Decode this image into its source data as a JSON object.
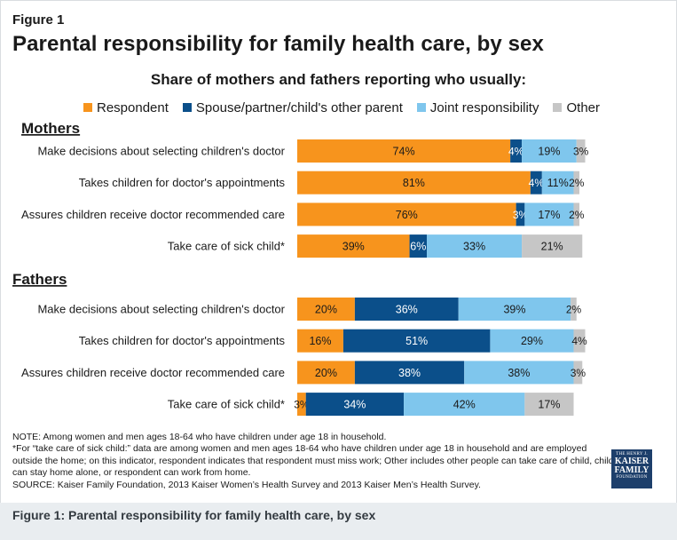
{
  "figure_label": "Figure 1",
  "title": "Parental responsibility for family health care, by sex",
  "subtitle": "Share of mothers and fathers reporting who usually:",
  "colors": {
    "respondent": "#f7941d",
    "spouse": "#0b4f8a",
    "joint": "#7fc6ed",
    "other": "#c6c6c6"
  },
  "legend": [
    {
      "key": "respondent",
      "label": "Respondent"
    },
    {
      "key": "spouse",
      "label": "Spouse/partner/child's other parent"
    },
    {
      "key": "joint",
      "label": "Joint responsibility"
    },
    {
      "key": "other",
      "label": "Other"
    }
  ],
  "chart_data": {
    "type": "bar",
    "orientation": "horizontal",
    "stacked": true,
    "value_unit": "%",
    "xlim": [
      0,
      100
    ],
    "grid": false,
    "legend_position": "top",
    "series_keys": [
      "respondent",
      "spouse",
      "joint",
      "other"
    ],
    "series_names": [
      "Respondent",
      "Spouse/partner/child's other parent",
      "Joint responsibility",
      "Other"
    ],
    "groups": [
      {
        "name": "Mothers",
        "rows": [
          {
            "label": "Make decisions about selecting children's doctor",
            "values": [
              74,
              4,
              19,
              3
            ]
          },
          {
            "label": "Takes children for doctor's appointments",
            "values": [
              81,
              4,
              11,
              2
            ]
          },
          {
            "label": "Assures children receive doctor recommended care",
            "values": [
              76,
              3,
              17,
              2
            ]
          },
          {
            "label": "Take care of sick child*",
            "values": [
              39,
              6,
              33,
              21
            ]
          }
        ]
      },
      {
        "name": "Fathers",
        "rows": [
          {
            "label": "Make decisions about selecting children's doctor",
            "values": [
              20,
              36,
              39,
              2
            ]
          },
          {
            "label": "Takes children for doctor's appointments",
            "values": [
              16,
              51,
              29,
              4
            ]
          },
          {
            "label": "Assures children receive doctor recommended care",
            "values": [
              20,
              38,
              38,
              3
            ]
          },
          {
            "label": "Take care of sick child*",
            "values": [
              3,
              34,
              42,
              17
            ]
          }
        ]
      }
    ]
  },
  "notes": {
    "line1": "NOTE: Among women and men ages 18-64  who have children under age 18 in household.",
    "line2": "*For “take care of sick child:” data are among women and men ages 18-64  who have children under age 18 in household and are employed outside the home;  on this indicator, respondent indicates that respondent must miss work; Other includes other people can take care of child, child can stay home alone, or respondent can work from home.",
    "line3": "SOURCE: Kaiser Family Foundation, 2013 Kaiser Women’s Health Survey and 2013 Kaiser Men’s Health Survey."
  },
  "logo": {
    "line1": "THE HENRY J.",
    "line2": "KAISER",
    "line3": "FAMILY",
    "line4": "FOUNDATION"
  },
  "footer_caption": "Figure 1: Parental responsibility for family health care, by sex"
}
